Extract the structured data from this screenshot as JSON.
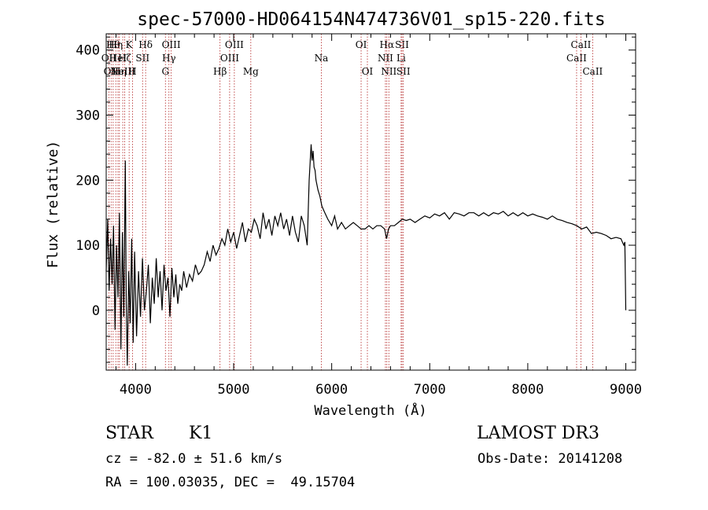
{
  "chart_data": {
    "type": "line",
    "title": "spec-57000-HD064154N474736V01_sp15-220.fits",
    "xlabel": "Wavelength (Å)",
    "ylabel": "Flux (relative)",
    "xlim": [
      3700,
      9100
    ],
    "ylim": [
      -92,
      425
    ],
    "xticks": [
      4000,
      5000,
      6000,
      7000,
      8000,
      9000
    ],
    "yticks": [
      0,
      100,
      200,
      300,
      400
    ],
    "grid": false,
    "series": [
      {
        "name": "flux",
        "x": [
          3700,
          3715,
          3730,
          3745,
          3760,
          3775,
          3790,
          3805,
          3820,
          3835,
          3850,
          3865,
          3880,
          3895,
          3905,
          3915,
          3930,
          3945,
          3960,
          3975,
          3990,
          4010,
          4030,
          4050,
          4070,
          4090,
          4110,
          4130,
          4150,
          4170,
          4190,
          4210,
          4230,
          4250,
          4270,
          4290,
          4310,
          4330,
          4350,
          4370,
          4390,
          4410,
          4430,
          4450,
          4470,
          4490,
          4520,
          4550,
          4580,
          4610,
          4640,
          4670,
          4700,
          4730,
          4760,
          4790,
          4820,
          4850,
          4880,
          4910,
          4940,
          4970,
          5000,
          5030,
          5060,
          5090,
          5120,
          5150,
          5180,
          5210,
          5240,
          5270,
          5300,
          5330,
          5360,
          5390,
          5420,
          5450,
          5480,
          5510,
          5540,
          5570,
          5600,
          5630,
          5660,
          5690,
          5720,
          5750,
          5770,
          5790,
          5800,
          5810,
          5820,
          5830,
          5840,
          5860,
          5880,
          5900,
          5930,
          5960,
          6000,
          6030,
          6060,
          6100,
          6140,
          6180,
          6220,
          6260,
          6300,
          6340,
          6380,
          6420,
          6460,
          6500,
          6540,
          6560,
          6580,
          6600,
          6640,
          6680,
          6720,
          6760,
          6800,
          6850,
          6900,
          6950,
          7000,
          7050,
          7100,
          7150,
          7200,
          7250,
          7300,
          7350,
          7400,
          7450,
          7500,
          7550,
          7600,
          7650,
          7700,
          7750,
          7800,
          7850,
          7900,
          7950,
          8000,
          8050,
          8100,
          8150,
          8200,
          8250,
          8300,
          8350,
          8400,
          8450,
          8500,
          8550,
          8600,
          8650,
          8700,
          8750,
          8800,
          8850,
          8900,
          8950,
          8980,
          8990,
          9000
        ],
        "y": [
          60,
          140,
          30,
          110,
          40,
          130,
          -30,
          100,
          20,
          150,
          -60,
          120,
          -10,
          230,
          10,
          -85,
          60,
          -20,
          110,
          -50,
          90,
          -40,
          60,
          -10,
          80,
          0,
          30,
          70,
          -20,
          50,
          10,
          80,
          20,
          60,
          0,
          70,
          30,
          50,
          -10,
          65,
          20,
          55,
          10,
          40,
          30,
          60,
          35,
          55,
          45,
          70,
          55,
          60,
          70,
          90,
          75,
          100,
          85,
          95,
          110,
          100,
          125,
          105,
          120,
          95,
          115,
          135,
          105,
          125,
          120,
          140,
          130,
          110,
          150,
          125,
          140,
          115,
          145,
          130,
          150,
          125,
          140,
          115,
          145,
          120,
          105,
          145,
          130,
          100,
          200,
          255,
          230,
          245,
          220,
          215,
          200,
          185,
          175,
          160,
          150,
          140,
          130,
          145,
          125,
          135,
          125,
          130,
          135,
          130,
          125,
          125,
          130,
          125,
          130,
          130,
          125,
          110,
          125,
          130,
          130,
          135,
          140,
          138,
          140,
          135,
          140,
          145,
          142,
          148,
          145,
          150,
          140,
          150,
          148,
          145,
          150,
          150,
          145,
          150,
          145,
          150,
          148,
          152,
          145,
          150,
          145,
          150,
          145,
          148,
          145,
          143,
          140,
          145,
          140,
          138,
          135,
          133,
          130,
          125,
          128,
          118,
          120,
          118,
          115,
          110,
          112,
          110,
          100,
          105,
          0
        ]
      }
    ],
    "line_markers": [
      {
        "wavelength": 3727,
        "label": "OII",
        "row": 1
      },
      {
        "wavelength": 3750,
        "label": "OII",
        "row": 2
      },
      {
        "wavelength": 3771,
        "label": "Hθ",
        "row": 0
      },
      {
        "wavelength": 3798,
        "label": "Hη",
        "row": 0
      },
      {
        "wavelength": 3820,
        "label": "HeI",
        "row": 1
      },
      {
        "wavelength": 3835,
        "label": "Hη",
        "row": 2
      },
      {
        "wavelength": 3869,
        "label": "NeIII",
        "row": 2
      },
      {
        "wavelength": 3889,
        "label": "Hζ",
        "row": 1
      },
      {
        "wavelength": 3934,
        "label": "K",
        "row": 0
      },
      {
        "wavelength": 3968,
        "label": "H",
        "row": 2
      },
      {
        "wavelength": 4071,
        "label": "SII",
        "row": 1
      },
      {
        "wavelength": 4102,
        "label": "Hδ",
        "row": 0
      },
      {
        "wavelength": 4304,
        "label": "G",
        "row": 2
      },
      {
        "wavelength": 4340,
        "label": "Hγ",
        "row": 1
      },
      {
        "wavelength": 4363,
        "label": "OIII",
        "row": 0
      },
      {
        "wavelength": 4861,
        "label": "Hβ",
        "row": 2
      },
      {
        "wavelength": 4959,
        "label": "OIII",
        "row": 1
      },
      {
        "wavelength": 5007,
        "label": "OIII",
        "row": 0
      },
      {
        "wavelength": 5175,
        "label": "Mg",
        "row": 2
      },
      {
        "wavelength": 5894,
        "label": "Na",
        "row": 1
      },
      {
        "wavelength": 6300,
        "label": "OI",
        "row": 0
      },
      {
        "wavelength": 6364,
        "label": "OI",
        "row": 2
      },
      {
        "wavelength": 6548,
        "label": "NII",
        "row": 1
      },
      {
        "wavelength": 6563,
        "label": "Hα",
        "row": 0
      },
      {
        "wavelength": 6583,
        "label": "NII",
        "row": 2
      },
      {
        "wavelength": 6708,
        "label": "Li",
        "row": 1
      },
      {
        "wavelength": 6717,
        "label": "SII",
        "row": 0
      },
      {
        "wavelength": 6731,
        "label": "SII",
        "row": 2
      },
      {
        "wavelength": 8498,
        "label": "CaII",
        "row": 1
      },
      {
        "wavelength": 8542,
        "label": "CaII",
        "row": 0
      },
      {
        "wavelength": 8662,
        "label": "CaII",
        "row": 2
      }
    ]
  },
  "info": {
    "object_class": "STAR",
    "subclass": "K1",
    "survey": "LAMOST DR3",
    "redshift_line": "cz = -82.0 ± 51.6 km/s",
    "obs_date_line": "Obs-Date: 20141208",
    "coords_line": "RA = 100.03035, DEC =  49.15704"
  },
  "colors": {
    "spectrum": "#000000",
    "line_markers": "#b22222",
    "axes": "#000000",
    "background": "#ffffff"
  }
}
